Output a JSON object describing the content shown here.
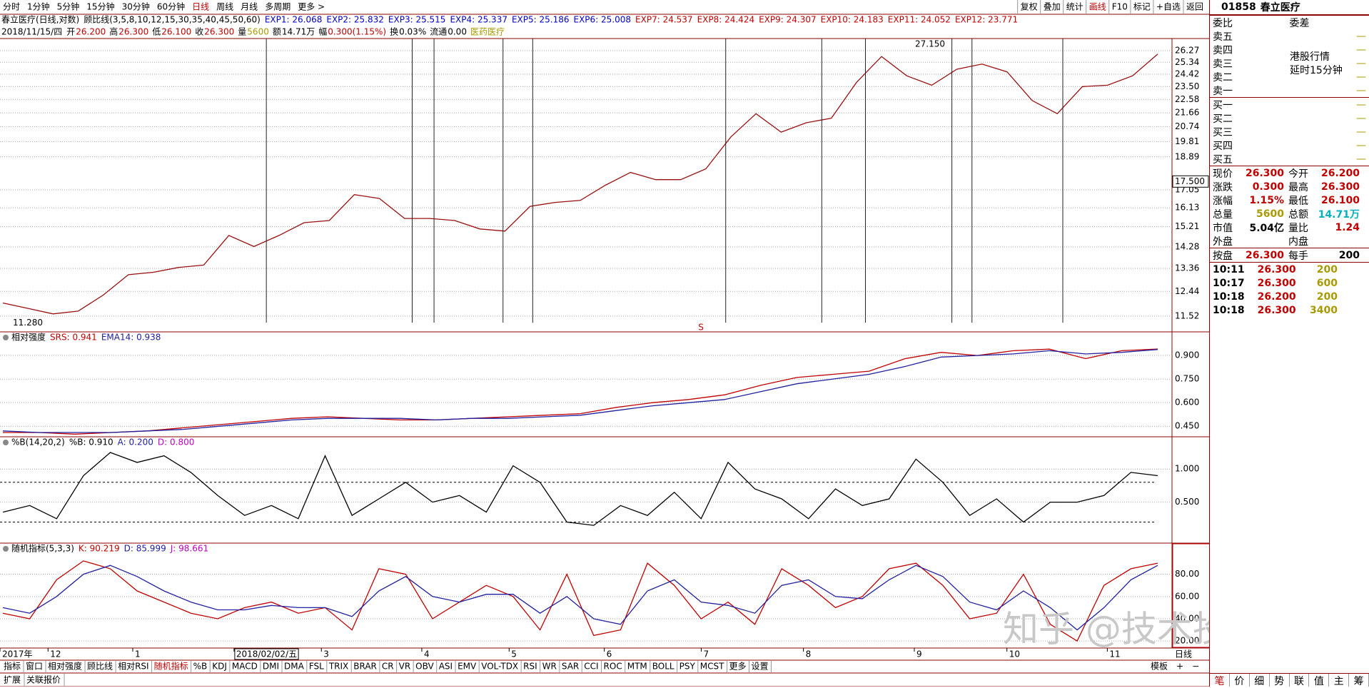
{
  "toolbar": {
    "periods": [
      "分时",
      "1分钟",
      "5分钟",
      "15分钟",
      "30分钟",
      "60分钟",
      "日线",
      "周线",
      "月线",
      "多周期",
      "更多 >"
    ],
    "active_period": "日线",
    "buttons": [
      "复权",
      "叠加",
      "统计",
      "画线",
      "F10",
      "标记",
      "+自选",
      "返回"
    ]
  },
  "header": {
    "title": "春立医疗(日线,对数)",
    "indicator": "顾比线(3,5,8,10,12,15,30,35,40,45,50,60)",
    "exps": [
      {
        "name": "EXP1: 26.068",
        "color": "#0000c8"
      },
      {
        "name": "EXP2: 25.832",
        "color": "#0000c8"
      },
      {
        "name": "EXP3: 25.515",
        "color": "#0000c8"
      },
      {
        "name": "EXP4: 25.337",
        "color": "#0000c8"
      },
      {
        "name": "EXP5: 25.186",
        "color": "#0000c8"
      },
      {
        "name": "EXP6: 25.008",
        "color": "#0000c8"
      },
      {
        "name": "EXP7: 24.537",
        "color": "#c00000"
      },
      {
        "name": "EXP8: 24.424",
        "color": "#c00000"
      },
      {
        "name": "EXP9: 24.307",
        "color": "#c00000"
      },
      {
        "name": "EXP10: 24.183",
        "color": "#c00000"
      },
      {
        "name": "EXP11: 24.052",
        "color": "#c00000"
      },
      {
        "name": "EXP12: 23.771",
        "color": "#c00000"
      }
    ],
    "info": [
      {
        "label": "2018/11/15/四",
        "value": "",
        "color": "#000"
      },
      {
        "label": "开",
        "value": "26.200",
        "color": "#c00000"
      },
      {
        "label": "高",
        "value": "26.300",
        "color": "#c00000"
      },
      {
        "label": "低",
        "value": "26.100",
        "color": "#c00000"
      },
      {
        "label": "收",
        "value": "26.300",
        "color": "#c00000"
      },
      {
        "label": "量",
        "value": "5600",
        "color": "#a89a00"
      },
      {
        "label": "额",
        "value": "14.71万",
        "color": "#000"
      },
      {
        "label": "幅",
        "value": "0.300(1.15%)",
        "color": "#c00000"
      },
      {
        "label": "换",
        "value": "0.03%",
        "color": "#000"
      },
      {
        "label": "流通",
        "value": "0.00",
        "color": "#000"
      },
      {
        "label": "医药医疗",
        "value": "",
        "color": "#a89a00"
      }
    ]
  },
  "price_chart": {
    "type": "line",
    "color": "#9a1010",
    "log_scale": true,
    "ylim": [
      10.97,
      27.28
    ],
    "yticks": [
      26.27,
      25.34,
      24.42,
      {
        "value": 23.5,
        "label": "23.50"
      },
      22.58,
      21.66,
      20.74,
      19.81,
      18.89,
      17.05,
      16.13,
      15.21,
      14.28,
      13.36,
      12.44,
      11.52
    ],
    "values": [
      12.0,
      11.8,
      11.6,
      11.7,
      12.3,
      13.1,
      13.2,
      13.4,
      13.5,
      14.8,
      14.3,
      14.8,
      15.4,
      15.5,
      16.8,
      16.6,
      15.6,
      15.6,
      15.5,
      15.1,
      15.0,
      16.2,
      16.4,
      16.5,
      17.3,
      18.0,
      17.6,
      17.6,
      18.2,
      20.1,
      21.6,
      20.4,
      21.0,
      21.3,
      23.8,
      25.8,
      24.3,
      23.6,
      24.8,
      25.2,
      24.6,
      22.5,
      21.6,
      23.5,
      23.6,
      24.3,
      26.0
    ],
    "crosshair": {
      "value": 17.5,
      "label": "17.500"
    },
    "max": {
      "value": 27.15,
      "label": "27.150"
    },
    "min": {
      "value": 11.28,
      "label": "11.280"
    },
    "signal": "S"
  },
  "srs_chart": {
    "type": "line",
    "title": "相对强度",
    "legend": [
      "SRS: 0.941",
      "EMA14: 0.938"
    ],
    "ylim": [
      0.383,
      1.05
    ],
    "yticks": [
      {
        "value": 0.9,
        "label": "0.900"
      },
      {
        "value": 0.75,
        "label": "0.750"
      },
      {
        "value": 0.6,
        "label": "0.600"
      },
      {
        "value": 0.45,
        "label": "0.450"
      }
    ],
    "series": [
      {
        "name": "SRS",
        "color": "#c00000",
        "values": [
          0.41,
          0.41,
          0.4,
          0.41,
          0.42,
          0.44,
          0.46,
          0.48,
          0.5,
          0.51,
          0.5,
          0.49,
          0.49,
          0.5,
          0.51,
          0.52,
          0.53,
          0.57,
          0.6,
          0.62,
          0.65,
          0.71,
          0.76,
          0.78,
          0.8,
          0.88,
          0.92,
          0.9,
          0.93,
          0.94,
          0.88,
          0.93,
          0.941
        ]
      },
      {
        "name": "EMA14",
        "color": "#2020a0",
        "values": [
          0.42,
          0.41,
          0.41,
          0.41,
          0.42,
          0.43,
          0.45,
          0.47,
          0.49,
          0.5,
          0.5,
          0.5,
          0.49,
          0.5,
          0.5,
          0.51,
          0.52,
          0.55,
          0.58,
          0.6,
          0.62,
          0.67,
          0.72,
          0.75,
          0.78,
          0.83,
          0.89,
          0.9,
          0.91,
          0.93,
          0.91,
          0.92,
          0.938
        ]
      }
    ]
  },
  "pb_chart": {
    "type": "line",
    "title": "%B(14,20,2)",
    "legend": [
      "%B: 0.910",
      "A: 0.200",
      "D: 0.800"
    ],
    "ylim": [
      -0.118,
      1.487
    ],
    "yticks": [
      {
        "value": 1,
        "label": "1.000"
      },
      {
        "value": 0.5,
        "label": "0.500"
      }
    ],
    "reference_lines": [
      0.2,
      0.8
    ],
    "series": [
      {
        "name": "%B",
        "color": "#000000",
        "values": [
          0.35,
          0.45,
          0.25,
          0.9,
          1.25,
          1.1,
          1.2,
          0.95,
          0.6,
          0.3,
          0.45,
          0.25,
          1.2,
          0.3,
          0.55,
          0.8,
          0.5,
          0.6,
          0.35,
          1.05,
          0.8,
          0.2,
          0.15,
          0.45,
          0.3,
          0.65,
          0.25,
          1.1,
          0.7,
          0.55,
          0.25,
          0.7,
          0.45,
          0.55,
          1.15,
          0.8,
          0.3,
          0.55,
          0.2,
          0.5,
          0.5,
          0.6,
          0.95,
          0.9
        ]
      }
    ]
  },
  "kdj_chart": {
    "type": "line",
    "title": "随机指标(5,3,3)",
    "legend": [
      "K: 90.219",
      "D: 85.999",
      "J: 98.661"
    ],
    "ylim": [
      13.7,
      108
    ],
    "yticks": [
      {
        "value": 80,
        "label": "80.00"
      },
      {
        "value": 60,
        "label": "60.00"
      },
      {
        "value": 40,
        "label": "40.00"
      },
      {
        "value": 20,
        "label": "20.00"
      }
    ],
    "series": [
      {
        "name": "K",
        "color": "#c00000",
        "values": [
          45,
          40,
          75,
          92,
          85,
          65,
          55,
          45,
          40,
          50,
          55,
          45,
          50,
          30,
          85,
          80,
          40,
          55,
          70,
          60,
          30,
          80,
          25,
          30,
          90,
          70,
          40,
          55,
          35,
          85,
          70,
          50,
          60,
          85,
          90,
          70,
          40,
          45,
          80,
          35,
          20,
          70,
          85,
          90
        ]
      },
      {
        "name": "D",
        "color": "#2020a0",
        "values": [
          50,
          45,
          60,
          80,
          88,
          78,
          65,
          55,
          48,
          48,
          52,
          50,
          50,
          42,
          65,
          78,
          60,
          55,
          62,
          62,
          45,
          60,
          40,
          35,
          65,
          75,
          55,
          52,
          45,
          70,
          75,
          60,
          58,
          75,
          88,
          78,
          55,
          48,
          65,
          50,
          30,
          50,
          75,
          88
        ]
      }
    ]
  },
  "date_axis": {
    "labels": [
      "2017年",
      "12",
      "1",
      "2018/02/02/五",
      "3",
      "4",
      "5",
      "6",
      "7",
      "8",
      "9",
      "10",
      "11"
    ],
    "period": "日线"
  },
  "tabs": [
    "指标",
    "窗口",
    "相对强度",
    "顾比线",
    "相对RSI",
    "随机指标",
    "%B",
    "KDJ",
    "MACD",
    "DMI",
    "DMA",
    "FSL",
    "TRIX",
    "BRAR",
    "CR",
    "VR",
    "OBV",
    "ASI",
    "EMV",
    "VOL-TDX",
    "RSI",
    "WR",
    "SAR",
    "CCI",
    "ROC",
    "MTM",
    "BOLL",
    "PSY",
    "MCST",
    "更多",
    "设置"
  ],
  "tab_right": [
    "模板",
    "+",
    "−"
  ],
  "bottom": [
    "扩展",
    "关联报价"
  ],
  "watermark": "知乎 @技术投机客",
  "side": {
    "code": "01858",
    "name": "春立医疗",
    "ratio_labels": [
      "委比",
      "委差"
    ],
    "sells": [
      "卖五",
      "卖四",
      "卖三",
      "卖二",
      "卖一"
    ],
    "buys": [
      "买一",
      "买二",
      "买三",
      "买四",
      "买五"
    ],
    "dash": "—",
    "notice": [
      "港股行情",
      "延时15分钟"
    ],
    "stats": [
      [
        {
          "label": "现价",
          "value": "26.300",
          "color": "#c00000"
        },
        {
          "label": "今开",
          "value": "26.200",
          "color": "#c00000"
        }
      ],
      [
        {
          "label": "涨跌",
          "value": "0.300",
          "color": "#c00000"
        },
        {
          "label": "最高",
          "value": "26.300",
          "color": "#c00000"
        }
      ],
      [
        {
          "label": "涨幅",
          "value": "1.15%",
          "color": "#c00000"
        },
        {
          "label": "最低",
          "value": "26.100",
          "color": "#c00000"
        }
      ],
      [
        {
          "label": "总量",
          "value": "5600",
          "color": "#a89a00"
        },
        {
          "label": "总额",
          "value": "14.71万",
          "color": "#00b0c0"
        }
      ],
      [
        {
          "label": "市值",
          "value": "5.04亿",
          "color": "#000"
        },
        {
          "label": "量比",
          "value": "1.24",
          "color": "#c00000"
        }
      ],
      [
        {
          "label": "外盘",
          "value": "",
          "color": "#000"
        },
        {
          "label": "内盘",
          "value": "",
          "color": "#000"
        }
      ],
      [
        {
          "label": "按盘",
          "value": "26.300",
          "color": "#c00000"
        },
        {
          "label": "每手",
          "value": "200",
          "color": "#000"
        }
      ]
    ],
    "trades": [
      [
        "10:11",
        "26.300",
        "200"
      ],
      [
        "10:17",
        "26.300",
        "600"
      ],
      [
        "10:18",
        "26.200",
        "200"
      ],
      [
        "10:18",
        "26.300",
        "3400"
      ]
    ],
    "tabs": [
      "笔",
      "价",
      "细",
      "势",
      "联",
      "值",
      "主",
      "筹"
    ]
  }
}
